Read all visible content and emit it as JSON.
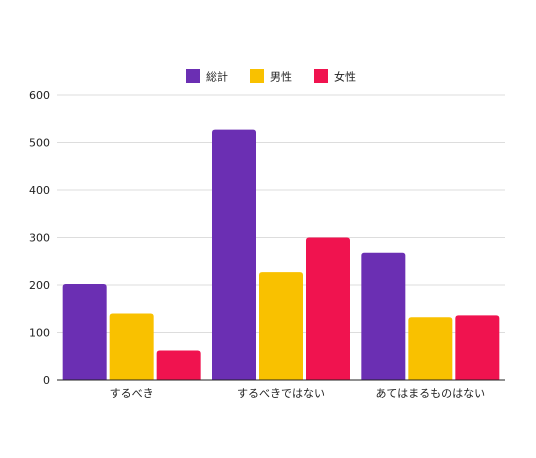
{
  "chart_data": {
    "type": "bar",
    "categories": [
      "するべき",
      "するべきではない",
      "あてはまるものはない"
    ],
    "series": [
      {
        "name": "総計",
        "values": [
          202,
          527,
          268
        ],
        "color": "#6b2fb3"
      },
      {
        "name": "男性",
        "values": [
          140,
          227,
          132
        ],
        "color": "#f9c100"
      },
      {
        "name": "女性",
        "values": [
          62,
          300,
          136
        ],
        "color": "#f0134f"
      }
    ],
    "ylim": [
      0,
      600
    ],
    "yticks": [
      0,
      100,
      200,
      300,
      400,
      500,
      600
    ],
    "grid": true,
    "legend_position": "top-center"
  }
}
